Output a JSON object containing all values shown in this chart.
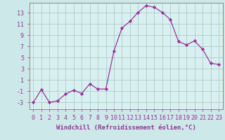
{
  "x": [
    0,
    1,
    2,
    3,
    4,
    5,
    6,
    7,
    8,
    9,
    10,
    11,
    12,
    13,
    14,
    15,
    16,
    17,
    18,
    19,
    20,
    21,
    22,
    23
  ],
  "y": [
    -3,
    -0.7,
    -3,
    -2.7,
    -1.5,
    -0.8,
    -1.4,
    0.3,
    -0.6,
    -0.6,
    6.2,
    10.3,
    11.5,
    13.1,
    14.3,
    14.0,
    13.1,
    11.8,
    7.9,
    7.3,
    8.0,
    6.5,
    4.0,
    3.8
  ],
  "line_color": "#993399",
  "marker": "D",
  "marker_size": 2.2,
  "bg_color": "#cce8e8",
  "plot_bg_color": "#d9f0f0",
  "grid_color": "#aacccc",
  "xlabel": "Windchill (Refroidissement éolien,°C)",
  "xtick_labels": [
    "0",
    "1",
    "2",
    "3",
    "4",
    "5",
    "6",
    "7",
    "8",
    "9",
    "10",
    "11",
    "12",
    "13",
    "14",
    "15",
    "16",
    "17",
    "18",
    "19",
    "20",
    "21",
    "22",
    "23"
  ],
  "ylabel_ticks": [
    -3,
    -1,
    1,
    3,
    5,
    7,
    9,
    11,
    13
  ],
  "xlim": [
    -0.5,
    23.5
  ],
  "ylim": [
    -4.2,
    14.8
  ],
  "xlabel_fontsize": 6.5,
  "tick_fontsize": 6.0,
  "title": ""
}
